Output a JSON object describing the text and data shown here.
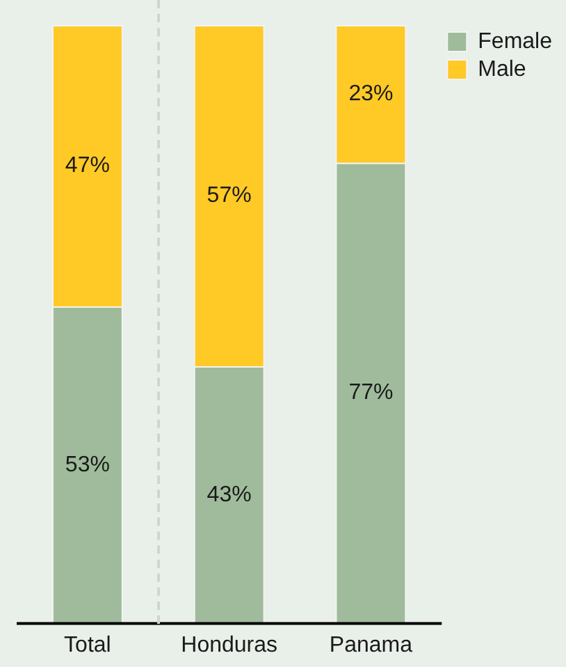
{
  "chart_data": {
    "type": "bar",
    "stacked": true,
    "categories": [
      "Total",
      "Honduras",
      "Panama"
    ],
    "series": [
      {
        "name": "Female",
        "color": "#9fbb9b",
        "values": [
          53,
          43,
          77
        ],
        "value_labels": [
          "53%",
          "43%",
          "77%"
        ]
      },
      {
        "name": "Male",
        "color": "#ffc926",
        "values": [
          47,
          57,
          23
        ],
        "value_labels": [
          "47%",
          "57%",
          "23%"
        ]
      }
    ],
    "legend": "top right",
    "grid": false
  }
}
